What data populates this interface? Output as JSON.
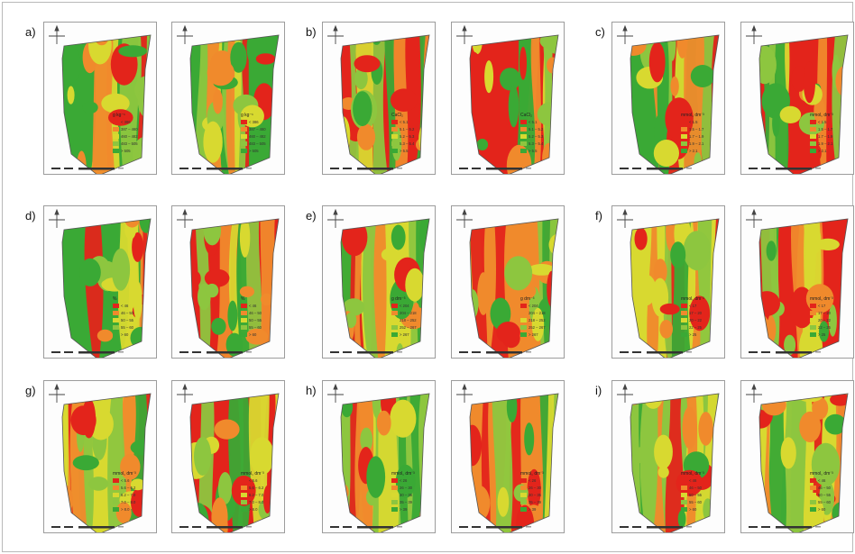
{
  "panels": [
    {
      "label": "a)",
      "legend_title": "g kg⁻¹",
      "classes": [
        "< 386",
        "387 – 460",
        "460 – 482",
        "483 – 505",
        "> 505"
      ]
    },
    {
      "label": "b)",
      "legend_title": "CaCl₂",
      "classes": [
        "< 5.1",
        "5.1 – 5.2",
        "5.2 – 5.3",
        "5.3 – 5.4",
        "> 5.5"
      ]
    },
    {
      "label": "c)",
      "legend_title": "mmol꜀ dm⁻³",
      "classes": [
        "< 1.5",
        "1.5 – 1.7",
        "1.7 – 1.9",
        "1.9 – 2.1",
        "> 2.1"
      ]
    },
    {
      "label": "d)",
      "legend_title": "%",
      "classes": [
        "< 46",
        "46 – 50",
        "50 – 55",
        "55 – 60",
        "> 60"
      ]
    },
    {
      "label": "e)",
      "legend_title": "g dm⁻³",
      "classes": [
        "< 204",
        "204 – 218",
        "218 – 252",
        "252 – 267",
        "> 267"
      ]
    },
    {
      "label": "f)",
      "legend_title": "mmol꜀ dm⁻³",
      "classes": [
        "< 17",
        "17 – 20",
        "20 – 22",
        "22 – 25",
        "> 25"
      ]
    },
    {
      "label": "g)",
      "legend_title": "mmol꜀ dm⁻³",
      "classes": [
        "< 5.6",
        "5.6 – 6.2",
        "6.2 – 7.0",
        "7.0 – 8.0",
        "> 8.0"
      ]
    },
    {
      "label": "h)",
      "legend_title": "mmol꜀ dm⁻³",
      "classes": [
        "< 26",
        "26 – 30",
        "30 – 35",
        "35 – 39",
        "> 39"
      ]
    },
    {
      "label": "i)",
      "legend_title": "mmol꜀ dm⁻³",
      "classes": [
        "< 46",
        "46 – 50",
        "50 – 55",
        "55 – 60",
        "> 60"
      ]
    }
  ],
  "class_colors": [
    "#e3241b",
    "#f08a2c",
    "#d8d930",
    "#8dc63f",
    "#3aa935"
  ],
  "map_background": "#fdfdfd",
  "north_arrow_icon": "north-cross-icon"
}
